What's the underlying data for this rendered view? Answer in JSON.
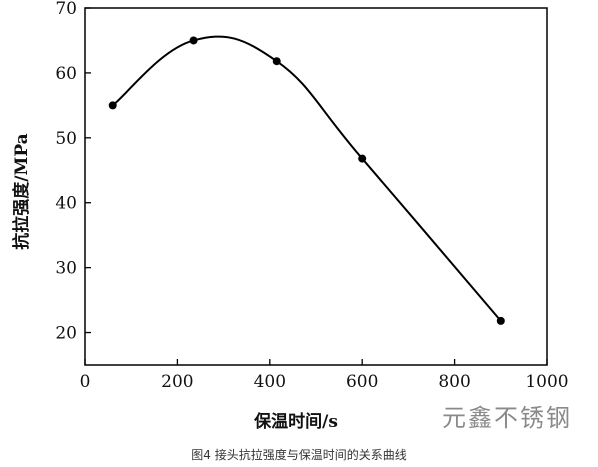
{
  "chart_data": {
    "type": "line",
    "x": [
      60,
      235,
      415,
      600,
      900
    ],
    "y": [
      55,
      65,
      61.8,
      46.8,
      21.8
    ],
    "xlim": [
      0,
      1000
    ],
    "ylim": [
      15,
      70
    ],
    "xticks": [
      0,
      200,
      400,
      600,
      800,
      1000
    ],
    "yticks": [
      20,
      30,
      40,
      50,
      60,
      70
    ],
    "xlabel": "保温时间/s",
    "ylabel": "抗拉强度/MPa",
    "grid": false,
    "smooth": true
  },
  "caption": "图4    接头抗拉强度与保温时间的关系曲线",
  "watermark": "元鑫不锈钢"
}
